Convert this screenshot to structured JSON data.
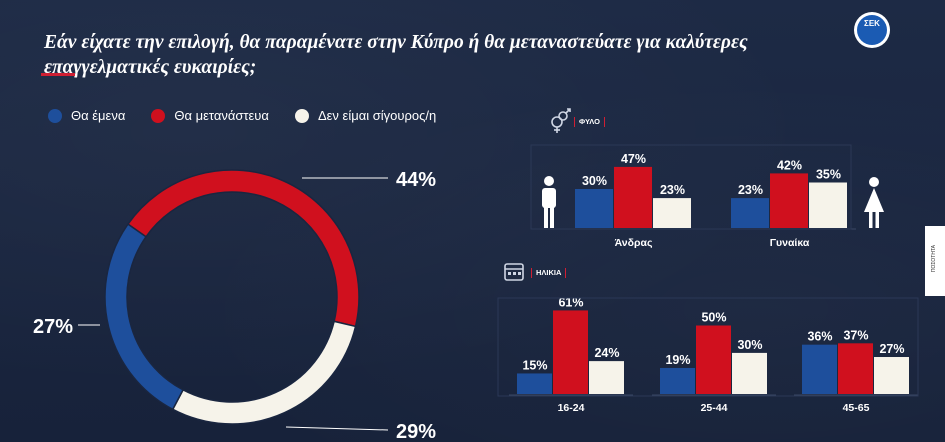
{
  "title": "Εάν είχατε την επιλογή, θα παραμένατε στην Κύπρο ή θα μεταναστεύατε για καλύτερες επαγγελματικές ευκαιρίες;",
  "logo_text": "ΣΕΚ",
  "legend": [
    {
      "label": "Θα έμενα",
      "color": "#1e4f9c"
    },
    {
      "label": "Θα μετανάστευα",
      "color": "#d0101e"
    },
    {
      "label": "Δεν είμαι σίγουρος/η",
      "color": "#f6f3ea"
    }
  ],
  "gender_section_label": "ΦΥΛΟ",
  "age_section_label": "ΗΛΙΚΙΑ",
  "side_tab_label": "ΠΟΣΟΤΗΤΑ",
  "chart_data": [
    {
      "type": "pie",
      "subtype": "donut",
      "labels": [
        "Θα έμενα",
        "Θα μετανάστευα",
        "Δεν είμαι σίγουρος/η"
      ],
      "values": [
        27,
        44,
        29
      ],
      "value_labels": [
        "27%",
        "44%",
        "29%"
      ]
    },
    {
      "type": "bar",
      "title": "ΦΥΛΟ",
      "categories": [
        "Άνδρας",
        "Γυναίκα"
      ],
      "series": [
        {
          "name": "Θα έμενα",
          "values": [
            30,
            23
          ],
          "labels": [
            "30%",
            "23%"
          ]
        },
        {
          "name": "Θα μετανάστευα",
          "values": [
            47,
            42
          ],
          "labels": [
            "47%",
            "42%"
          ]
        },
        {
          "name": "Δεν είμαι σίγουρος/η",
          "values": [
            23,
            35
          ],
          "labels": [
            "23%",
            "35%"
          ]
        }
      ]
    },
    {
      "type": "bar",
      "title": "ΗΛΙΚΙΑ",
      "categories": [
        "16-24",
        "25-44",
        "45-65"
      ],
      "series": [
        {
          "name": "Θα έμενα",
          "values": [
            15,
            19,
            36
          ],
          "labels": [
            "15%",
            "19%",
            "36%"
          ]
        },
        {
          "name": "Θα μετανάστευα",
          "values": [
            61,
            50,
            37
          ],
          "labels": [
            "61%",
            "50%",
            "37%"
          ]
        },
        {
          "name": "Δεν είμαι σίγουρος/η",
          "values": [
            24,
            30,
            27
          ],
          "labels": [
            "24%",
            "30%",
            "27%"
          ]
        }
      ]
    }
  ]
}
